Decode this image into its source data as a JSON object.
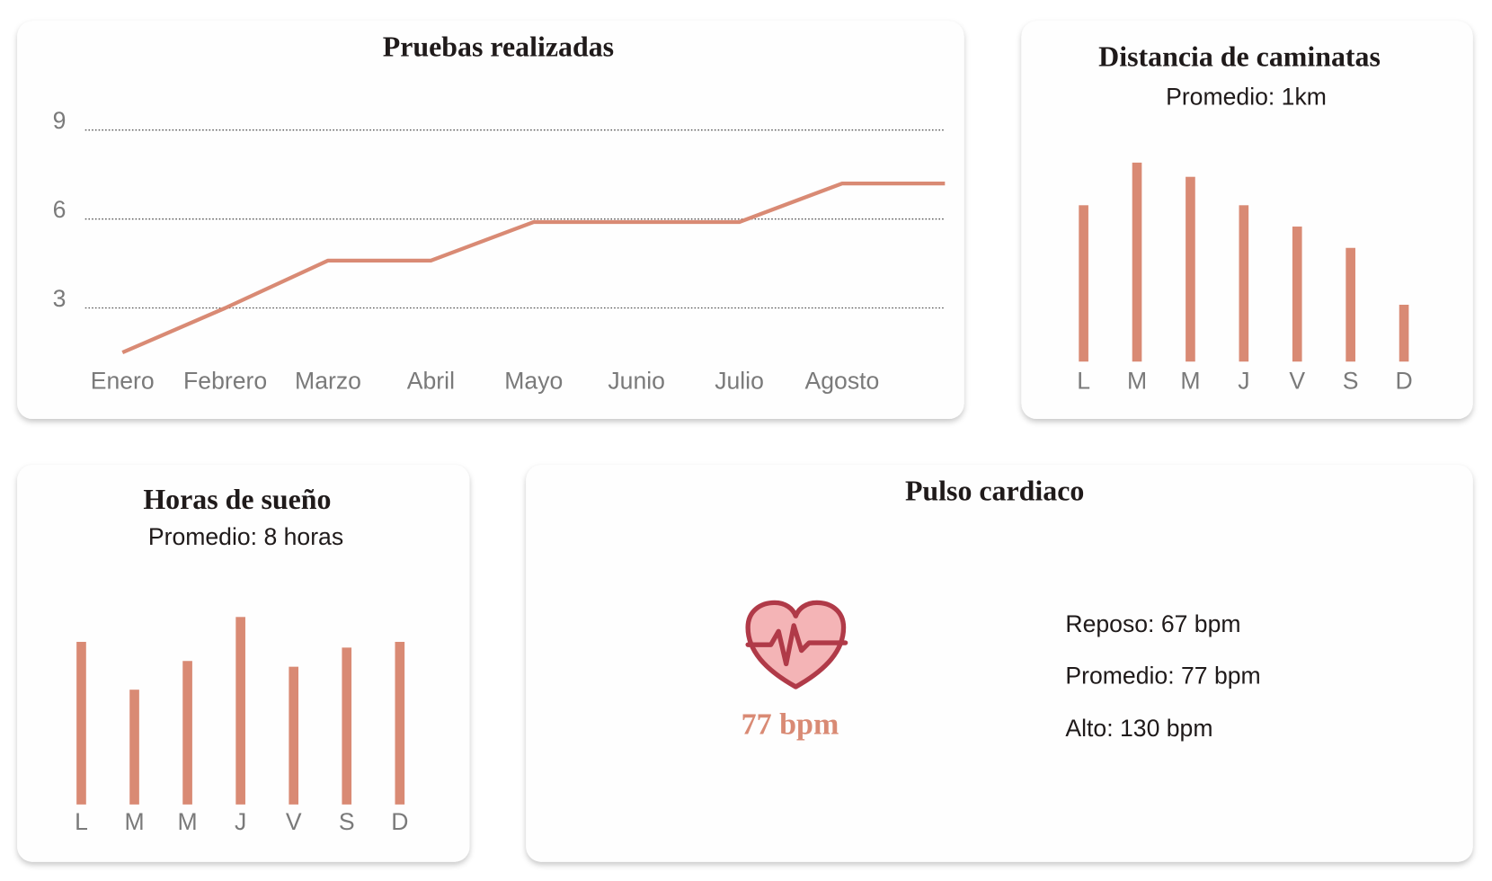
{
  "chart_data": [
    {
      "type": "line",
      "title": "Pruebas realizadas",
      "categories": [
        "Enero",
        "Febrero",
        "Marzo",
        "Abril",
        "Mayo",
        "Junio",
        "Julio",
        "Agosto",
        null
      ],
      "values": [
        1.5,
        3,
        4.6,
        4.6,
        5.9,
        5.9,
        5.9,
        7.2,
        7.2
      ],
      "color": "#d98a74",
      "ylim": [
        0,
        10
      ],
      "yticks": [
        3,
        6,
        9
      ],
      "grid": true
    },
    {
      "type": "bar",
      "title": "Distancia de caminatas",
      "subtitle": "Promedio: 1km",
      "categories": [
        "L",
        "M",
        "M",
        "J",
        "V",
        "S",
        "D"
      ],
      "values": [
        1.1,
        1.4,
        1.3,
        1.1,
        0.95,
        0.8,
        0.4
      ],
      "color": "#d98a74"
    },
    {
      "type": "bar",
      "title": "Horas de sueño",
      "subtitle": "Promedio: 8 horas",
      "categories": [
        "L",
        "M",
        "M",
        "J",
        "V",
        "S",
        "D"
      ],
      "values": [
        8.5,
        6,
        7.5,
        9.8,
        7.2,
        8.2,
        8.5
      ],
      "color": "#d98a74"
    }
  ],
  "pulse_card": {
    "title": "Pulso cardiaco",
    "reading": "77 bpm",
    "stats": [
      "Reposo: 67 bpm",
      "Promedio: 77 bpm",
      "Alto: 130 bpm"
    ]
  }
}
